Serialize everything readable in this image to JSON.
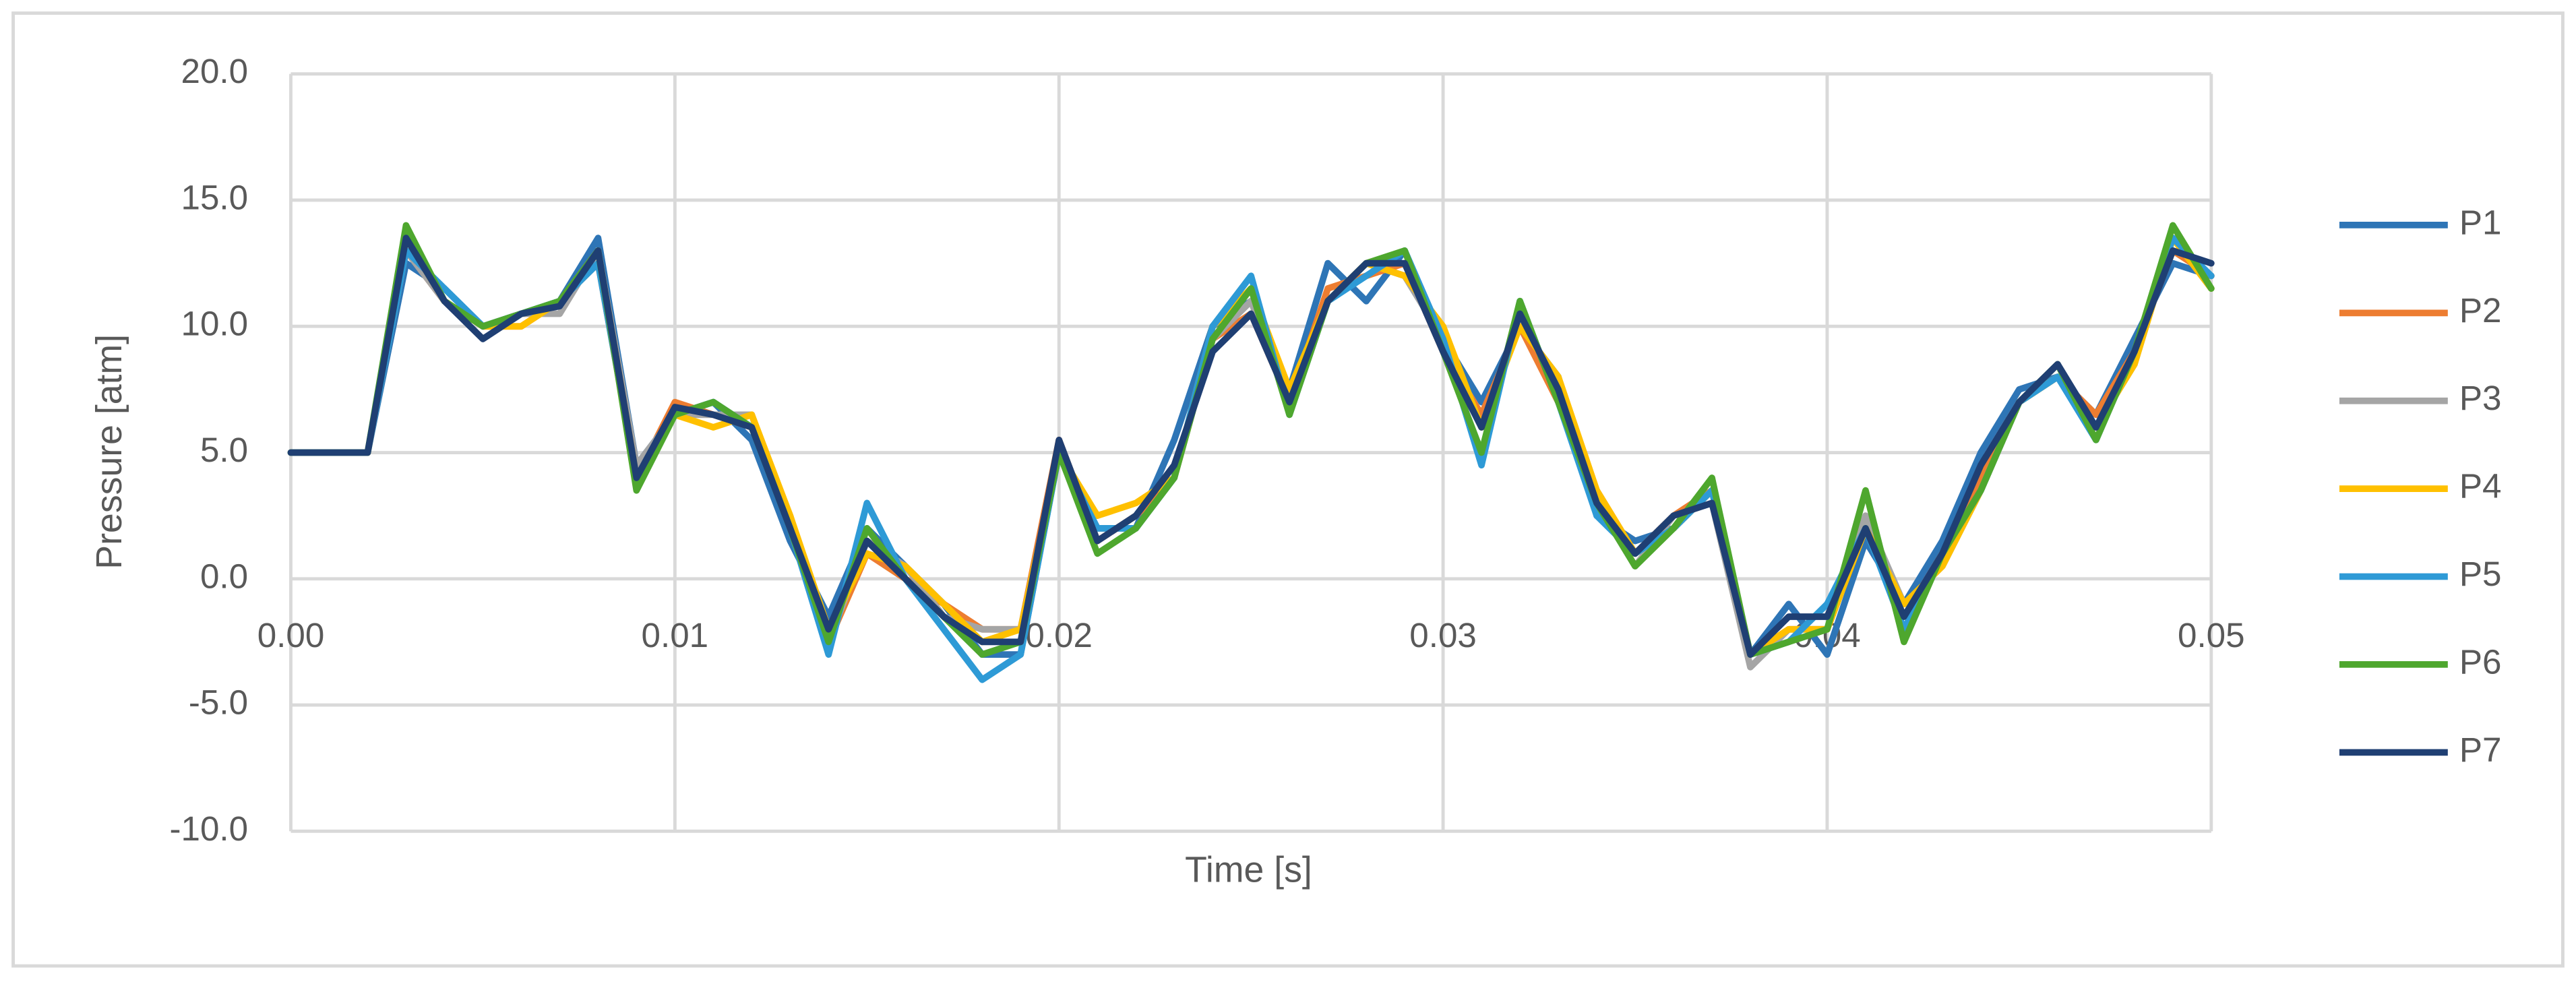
{
  "chart_data": {
    "type": "line",
    "x_label": "Time [s]",
    "y_label": "Pressure [atm]",
    "xlim": [
      0,
      0.05
    ],
    "ylim": [
      -10,
      20
    ],
    "xticks": [
      {
        "value": 0,
        "label": "0.00"
      },
      {
        "value": 0.01,
        "label": "0.01"
      },
      {
        "value": 0.02,
        "label": "0.02"
      },
      {
        "value": 0.03,
        "label": "0.03"
      },
      {
        "value": 0.04,
        "label": "0.04"
      },
      {
        "value": 0.05,
        "label": "0.05"
      }
    ],
    "yticks": [
      {
        "value": -10,
        "label": "-10.0"
      },
      {
        "value": -5,
        "label": "-5.0"
      },
      {
        "value": 0,
        "label": "0.0"
      },
      {
        "value": 5,
        "label": "5.0"
      },
      {
        "value": 10,
        "label": "10.0"
      },
      {
        "value": 15,
        "label": "15.0"
      },
      {
        "value": 20,
        "label": "20.0"
      }
    ],
    "grid": true,
    "legend": "right",
    "x": [
      0,
      0.001,
      0.002,
      0.003,
      0.004,
      0.005,
      0.006,
      0.007,
      0.008,
      0.009,
      0.01,
      0.011,
      0.012,
      0.013,
      0.014,
      0.015,
      0.016,
      0.017,
      0.018,
      0.019,
      0.02,
      0.021,
      0.022,
      0.023,
      0.024,
      0.025,
      0.026,
      0.027,
      0.028,
      0.029,
      0.03,
      0.031,
      0.032,
      0.033,
      0.034,
      0.035,
      0.036,
      0.037,
      0.038,
      0.039,
      0.04,
      0.041,
      0.042,
      0.043,
      0.044,
      0.045,
      0.046,
      0.047,
      0.048,
      0.049,
      0.05
    ],
    "series": [
      {
        "name": "P1",
        "color": "#2e75b6",
        "values": [
          5,
          5,
          5,
          12.5,
          11.5,
          10,
          10.5,
          11,
          13.5,
          4.5,
          6.5,
          7,
          5.5,
          1.5,
          -1.5,
          2,
          0.5,
          -1,
          -3,
          -3,
          5,
          2,
          2,
          5.5,
          10,
          11,
          7.5,
          12.5,
          11,
          13,
          9.5,
          7,
          10,
          8,
          2.5,
          1.5,
          2,
          3.5,
          -3,
          -1,
          -3,
          1.5,
          -1,
          1.5,
          5,
          7.5,
          8,
          6.5,
          9.5,
          12.5,
          12
        ]
      },
      {
        "name": "P2",
        "color": "#ed7d31",
        "values": [
          5,
          5,
          5,
          13,
          11,
          10,
          10,
          11,
          12.5,
          4,
          7,
          6.5,
          6,
          2.5,
          -2.5,
          1,
          0,
          -1,
          -2,
          -2,
          5.5,
          1.5,
          2.5,
          4,
          9.5,
          10.5,
          7,
          11.5,
          12,
          12.5,
          9,
          6.5,
          10,
          7,
          3.5,
          1,
          2.5,
          3.5,
          -3,
          -2,
          -2,
          2,
          -1.5,
          1,
          4,
          7,
          8,
          6.5,
          9,
          13,
          12
        ]
      },
      {
        "name": "P3",
        "color": "#a5a5a5",
        "values": [
          5,
          5,
          5,
          13,
          11,
          10,
          10.5,
          10.5,
          13,
          4.5,
          6.5,
          6.5,
          6.5,
          2,
          -2.5,
          1.5,
          0.5,
          -1.5,
          -2,
          -2,
          5,
          2,
          2,
          4,
          9.5,
          11,
          7,
          11,
          12.5,
          12,
          9.5,
          6,
          10.5,
          7.5,
          3,
          0.5,
          2.5,
          3,
          -3.5,
          -2,
          -2,
          2.5,
          -1,
          0.5,
          3.5,
          7,
          8,
          6,
          8.5,
          13.5,
          11.5
        ]
      },
      {
        "name": "P4",
        "color": "#ffc000",
        "values": [
          5,
          5,
          5,
          13.5,
          11,
          10,
          10,
          11,
          13,
          4,
          6.5,
          6,
          6.5,
          2.5,
          -2,
          1,
          0.5,
          -1,
          -2.5,
          -2,
          5,
          2.5,
          3,
          4,
          10,
          11.5,
          7.5,
          11,
          12.5,
          12,
          10,
          6,
          10,
          8,
          3.5,
          1,
          2,
          3.5,
          -3,
          -2,
          -2,
          2,
          -1,
          0.5,
          3.5,
          7,
          8,
          6,
          8.5,
          13.5,
          11.5
        ]
      },
      {
        "name": "P5",
        "color": "#2e9ad6",
        "values": [
          5,
          5,
          5,
          13,
          11.5,
          10,
          10.5,
          11,
          12.5,
          4,
          6.5,
          7,
          6,
          2,
          -3,
          3,
          0,
          -2,
          -4,
          -3,
          5,
          2,
          2,
          4,
          10,
          12,
          6.5,
          11,
          12,
          13,
          9.5,
          4.5,
          11,
          7,
          2.5,
          1,
          2,
          3.5,
          -3,
          -2.5,
          -1,
          2,
          -2,
          1,
          3.5,
          7,
          8,
          5.5,
          9,
          13.5,
          12
        ]
      },
      {
        "name": "P6",
        "color": "#4ea72e",
        "values": [
          5,
          5,
          5,
          14,
          11,
          10,
          10.5,
          11,
          13,
          3.5,
          6.5,
          7,
          6,
          2,
          -2.5,
          2,
          0,
          -1.5,
          -3,
          -2.5,
          5,
          1,
          2,
          4,
          9.5,
          11.5,
          6.5,
          11,
          12.5,
          13,
          9,
          5,
          11,
          7,
          3,
          0.5,
          2,
          4,
          -3,
          -2.5,
          -2,
          3.5,
          -2.5,
          1,
          3.5,
          7,
          8.5,
          5.5,
          9,
          14,
          11.5
        ]
      },
      {
        "name": "P7",
        "color": "#1f3f73",
        "values": [
          5,
          5,
          5,
          13.5,
          11,
          9.5,
          10.5,
          10.8,
          13,
          4,
          6.8,
          6.5,
          6,
          2,
          -2,
          1.5,
          0,
          -1.5,
          -2.5,
          -2.5,
          5.5,
          1.5,
          2.5,
          4.5,
          9,
          10.5,
          7,
          11,
          12.5,
          12.5,
          9,
          6,
          10.5,
          7.5,
          3,
          1,
          2.5,
          3,
          -3,
          -1.5,
          -1.5,
          2,
          -1.5,
          1,
          4.5,
          7,
          8.5,
          6,
          9,
          13,
          12.5
        ]
      }
    ]
  }
}
